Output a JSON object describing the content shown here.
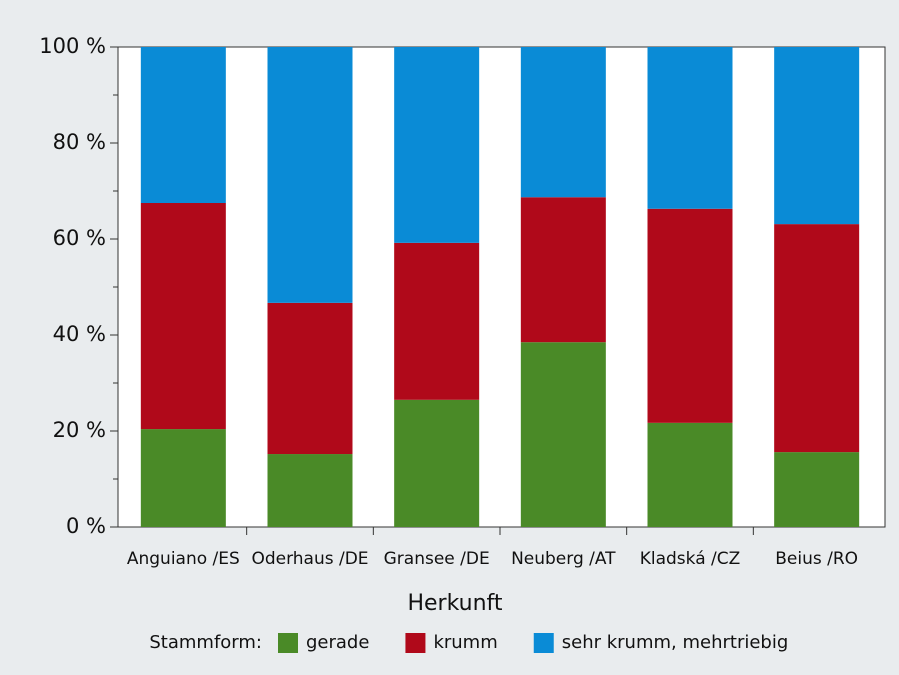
{
  "chart_data": {
    "type": "stacked_bar",
    "x_label": "Herkunft",
    "legend_title": "Stammform:",
    "categories": [
      "Anguiano /ES",
      "Oderhaus /DE",
      "Gransee /DE",
      "Neuberg /AT",
      "Kladská /CZ",
      "Beius /RO"
    ],
    "series": [
      {
        "name": "gerade",
        "color": "#4a8a27",
        "values": [
          20.4,
          15.2,
          26.5,
          38.5,
          21.7,
          15.6
        ]
      },
      {
        "name": "krumm",
        "color": "#b0091a",
        "values": [
          47.1,
          31.5,
          32.7,
          30.2,
          44.6,
          47.5
        ]
      },
      {
        "name": "sehr krumm, mehrtriebig",
        "color": "#0a8bd6",
        "values": [
          32.5,
          53.3,
          40.8,
          31.3,
          33.7,
          36.9
        ]
      }
    ],
    "ylim": [
      0,
      100
    ],
    "yticks": [
      {
        "value": 0,
        "label": "0 %"
      },
      {
        "value": 20,
        "label": "20 %"
      },
      {
        "value": 40,
        "label": "40 %"
      },
      {
        "value": 60,
        "label": "60 %"
      },
      {
        "value": 80,
        "label": "80 %"
      },
      {
        "value": 100,
        "label": "100 %"
      }
    ],
    "legend": "bottom"
  }
}
